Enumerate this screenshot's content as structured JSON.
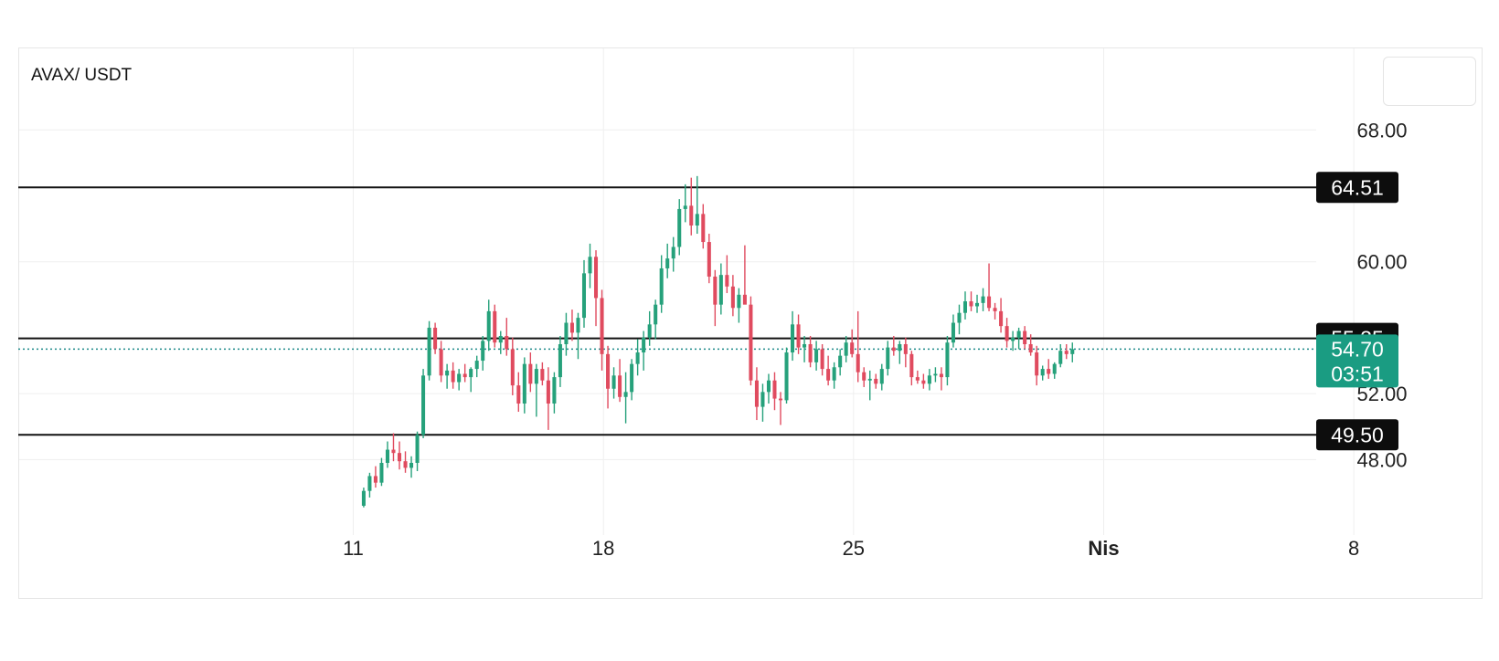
{
  "chart_data": {
    "type": "candlestick",
    "symbol": "AVAX/ USDT",
    "y_axis": {
      "ticks": [
        "68.00",
        "60.00",
        "52.00",
        "48.00"
      ],
      "values": [
        68,
        60,
        52,
        48
      ],
      "range": [
        44.2,
        73.0
      ]
    },
    "x_axis": {
      "ticks": [
        "11",
        "18",
        "25",
        "Nis",
        "8"
      ],
      "tick_hours": [
        0,
        168,
        336,
        504,
        672
      ],
      "range_hours": [
        -225,
        702
      ]
    },
    "levels": [
      {
        "value": 64.51,
        "label": "64.51"
      },
      {
        "value": 55.35,
        "label": "55.35"
      },
      {
        "value": 49.5,
        "label": "49.50"
      }
    ],
    "last_price": {
      "value": 54.7,
      "label": "54.70",
      "countdown": "03:51"
    },
    "candle_interval_hours": 4,
    "first_candle_hours": 7,
    "candles": [
      [
        45.2,
        46.3,
        45.1,
        46.1
      ],
      [
        46.1,
        47.2,
        45.7,
        47.0
      ],
      [
        47.0,
        47.6,
        46.3,
        46.6
      ],
      [
        46.6,
        48.1,
        46.4,
        47.8
      ],
      [
        47.8,
        49.1,
        47.5,
        48.6
      ],
      [
        48.6,
        49.6,
        47.9,
        48.4
      ],
      [
        48.4,
        49.1,
        47.4,
        47.9
      ],
      [
        47.9,
        48.5,
        47.2,
        47.5
      ],
      [
        47.5,
        48.2,
        46.9,
        47.8
      ],
      [
        47.8,
        49.7,
        47.3,
        49.5
      ],
      [
        49.5,
        53.5,
        49.3,
        53.1
      ],
      [
        53.1,
        56.4,
        52.8,
        56.0
      ],
      [
        56.0,
        56.3,
        54.4,
        54.7
      ],
      [
        54.7,
        55.2,
        52.7,
        53.1
      ],
      [
        53.1,
        53.8,
        52.3,
        53.4
      ],
      [
        53.4,
        53.9,
        52.3,
        52.7
      ],
      [
        52.7,
        53.5,
        52.2,
        53.2
      ],
      [
        53.2,
        53.8,
        52.7,
        53.0
      ],
      [
        53.0,
        53.6,
        52.1,
        53.5
      ],
      [
        53.5,
        54.3,
        53.0,
        54.0
      ],
      [
        54.0,
        55.5,
        53.4,
        55.2
      ],
      [
        55.2,
        57.7,
        54.6,
        57.0
      ],
      [
        57.0,
        57.4,
        54.8,
        55.1
      ],
      [
        55.1,
        55.8,
        54.4,
        55.5
      ],
      [
        55.5,
        56.6,
        54.3,
        54.7
      ],
      [
        54.7,
        55.4,
        51.9,
        52.5
      ],
      [
        52.5,
        53.3,
        50.9,
        51.4
      ],
      [
        51.4,
        54.2,
        50.8,
        53.8
      ],
      [
        53.8,
        54.5,
        52.1,
        52.6
      ],
      [
        52.6,
        53.8,
        50.6,
        53.5
      ],
      [
        53.5,
        53.9,
        52.5,
        52.8
      ],
      [
        52.8,
        53.6,
        49.8,
        51.4
      ],
      [
        51.4,
        53.3,
        50.8,
        53.0
      ],
      [
        53.0,
        55.5,
        52.4,
        55.0
      ],
      [
        55.0,
        56.9,
        54.3,
        56.3
      ],
      [
        56.3,
        57.1,
        55.2,
        55.7
      ],
      [
        55.7,
        56.9,
        54.1,
        56.6
      ],
      [
        56.6,
        60.1,
        56.0,
        59.3
      ],
      [
        59.3,
        61.1,
        58.4,
        60.3
      ],
      [
        60.3,
        60.7,
        56.1,
        57.8
      ],
      [
        57.8,
        58.3,
        53.4,
        54.4
      ],
      [
        54.4,
        54.9,
        51.1,
        52.3
      ],
      [
        52.3,
        53.6,
        51.7,
        53.1
      ],
      [
        53.1,
        54.1,
        51.5,
        51.8
      ],
      [
        51.8,
        53.3,
        50.2,
        52.1
      ],
      [
        52.1,
        54.1,
        51.6,
        53.8
      ],
      [
        53.8,
        55.3,
        53.1,
        54.5
      ],
      [
        54.5,
        55.8,
        53.4,
        55.4
      ],
      [
        55.4,
        57.0,
        54.9,
        56.2
      ],
      [
        56.2,
        57.7,
        55.3,
        57.4
      ],
      [
        57.4,
        60.4,
        56.9,
        59.6
      ],
      [
        59.6,
        61.1,
        59.0,
        60.2
      ],
      [
        60.2,
        61.5,
        59.4,
        60.9
      ],
      [
        60.9,
        63.8,
        60.4,
        63.2
      ],
      [
        63.2,
        64.7,
        62.4,
        63.4
      ],
      [
        63.4,
        65.1,
        61.6,
        62.2
      ],
      [
        62.2,
        65.2,
        61.7,
        62.9
      ],
      [
        62.9,
        63.5,
        60.8,
        61.2
      ],
      [
        61.2,
        61.7,
        58.7,
        59.1
      ],
      [
        59.1,
        59.5,
        56.1,
        57.4
      ],
      [
        57.4,
        59.9,
        56.8,
        59.2
      ],
      [
        59.2,
        60.4,
        58.1,
        58.5
      ],
      [
        58.5,
        59.2,
        56.7,
        57.2
      ],
      [
        57.2,
        58.4,
        56.3,
        58.0
      ],
      [
        58.0,
        61.0,
        57.5,
        57.4
      ],
      [
        57.4,
        57.9,
        52.5,
        52.8
      ],
      [
        52.8,
        53.6,
        50.4,
        51.2
      ],
      [
        51.2,
        52.6,
        50.3,
        52.1
      ],
      [
        52.1,
        53.2,
        51.4,
        52.8
      ],
      [
        52.8,
        53.3,
        51.0,
        51.7
      ],
      [
        51.7,
        52.1,
        50.1,
        51.6
      ],
      [
        51.6,
        54.8,
        51.4,
        54.5
      ],
      [
        54.5,
        57.0,
        54.0,
        56.2
      ],
      [
        56.2,
        56.8,
        54.4,
        54.8
      ],
      [
        54.8,
        55.5,
        53.9,
        55.0
      ],
      [
        55.0,
        55.5,
        53.6,
        53.9
      ],
      [
        53.9,
        55.2,
        53.4,
        54.7
      ],
      [
        54.7,
        55.0,
        53.1,
        53.5
      ],
      [
        53.5,
        54.3,
        52.5,
        52.8
      ],
      [
        52.8,
        53.9,
        52.3,
        53.6
      ],
      [
        53.6,
        54.7,
        53.1,
        54.3
      ],
      [
        54.3,
        55.5,
        53.9,
        55.1
      ],
      [
        55.1,
        55.9,
        54.2,
        54.4
      ],
      [
        54.4,
        57.0,
        52.7,
        53.3
      ],
      [
        53.3,
        53.6,
        52.4,
        52.8
      ],
      [
        52.8,
        53.4,
        51.6,
        52.9
      ],
      [
        52.9,
        53.2,
        52.3,
        52.6
      ],
      [
        52.6,
        53.8,
        52.2,
        53.5
      ],
      [
        53.5,
        55.2,
        53.1,
        54.8
      ],
      [
        54.8,
        55.5,
        54.3,
        54.6
      ],
      [
        54.6,
        55.2,
        53.8,
        55.0
      ],
      [
        55.0,
        55.4,
        53.6,
        54.4
      ],
      [
        54.4,
        54.6,
        52.5,
        53.0
      ],
      [
        53.0,
        53.4,
        52.6,
        52.8
      ],
      [
        52.8,
        53.2,
        52.3,
        52.6
      ],
      [
        52.6,
        53.5,
        52.2,
        53.1
      ],
      [
        53.1,
        53.6,
        52.7,
        53.2
      ],
      [
        53.2,
        53.6,
        52.2,
        53.0
      ],
      [
        53.0,
        55.5,
        52.5,
        55.1
      ],
      [
        55.1,
        56.8,
        54.8,
        56.3
      ],
      [
        56.3,
        57.4,
        55.6,
        56.9
      ],
      [
        56.9,
        58.2,
        56.5,
        57.6
      ],
      [
        57.6,
        58.2,
        57.0,
        57.3
      ],
      [
        57.3,
        58.0,
        56.9,
        57.5
      ],
      [
        57.5,
        58.4,
        57.0,
        57.9
      ],
      [
        57.9,
        59.9,
        57.0,
        57.2
      ],
      [
        57.2,
        57.5,
        56.5,
        57.0
      ],
      [
        57.0,
        57.8,
        55.7,
        56.1
      ],
      [
        56.1,
        56.6,
        54.8,
        55.2
      ],
      [
        55.2,
        55.8,
        54.6,
        55.4
      ],
      [
        55.4,
        56.0,
        54.7,
        55.8
      ],
      [
        55.8,
        56.1,
        54.7,
        55.0
      ],
      [
        55.0,
        55.6,
        54.3,
        54.5
      ],
      [
        54.5,
        54.9,
        52.5,
        53.1
      ],
      [
        53.1,
        53.7,
        52.8,
        53.5
      ],
      [
        53.5,
        54.1,
        52.9,
        53.2
      ],
      [
        53.2,
        53.9,
        52.9,
        53.8
      ],
      [
        53.8,
        55.0,
        53.6,
        54.6
      ],
      [
        54.6,
        55.0,
        54.1,
        54.4
      ],
      [
        54.4,
        55.1,
        53.9,
        54.7
      ]
    ]
  }
}
